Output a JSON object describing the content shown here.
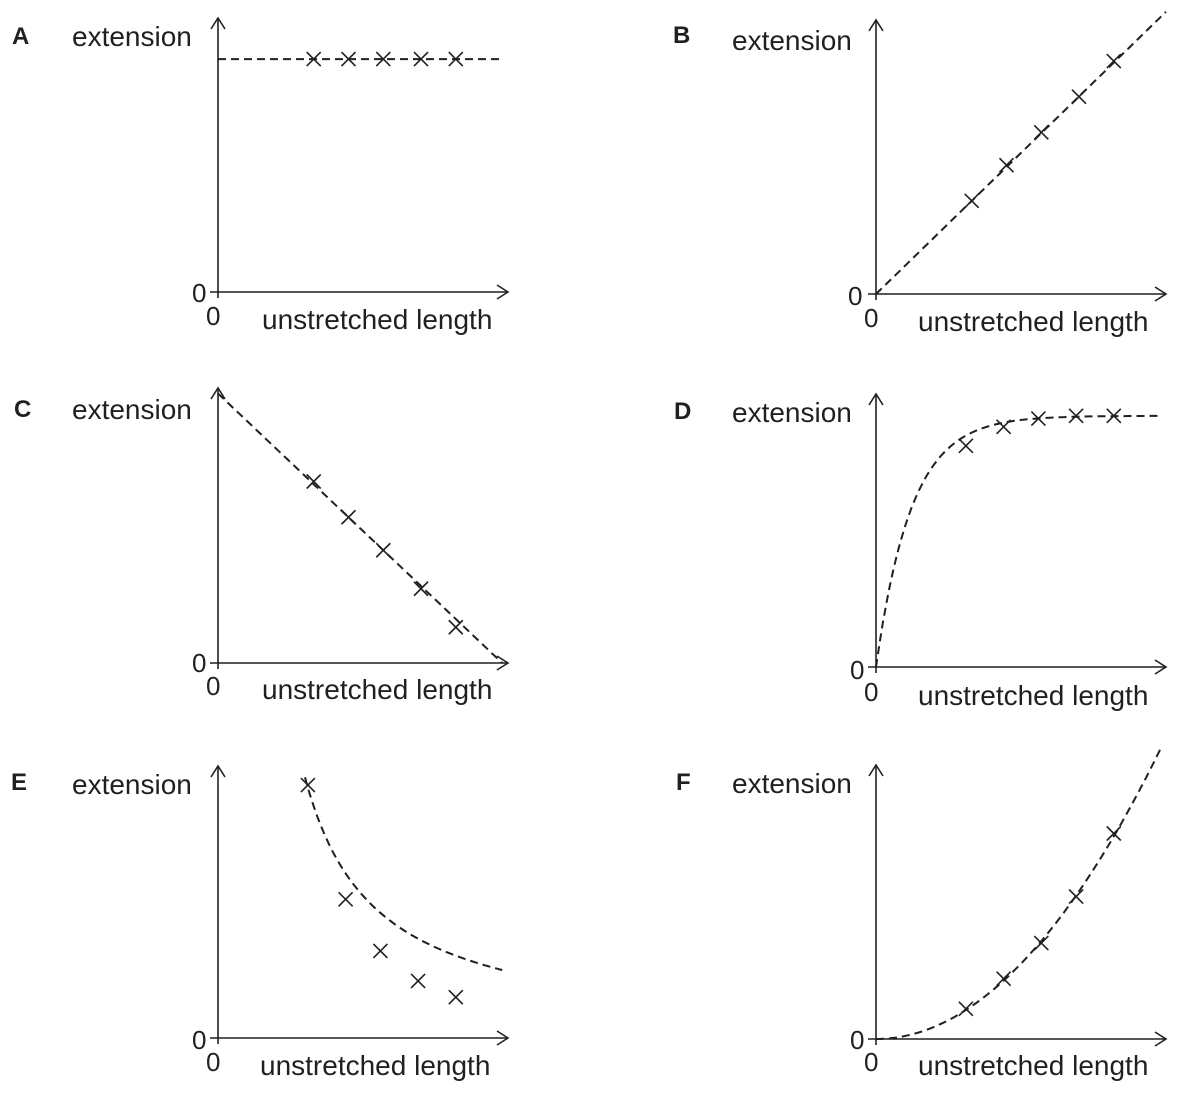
{
  "chart_data": [
    {
      "label": "A",
      "type": "scatter",
      "xlabel": "unstretched length",
      "ylabel": "extension",
      "x_origin_label": "0",
      "y_origin_label": "0",
      "points": [
        [
          0.33,
          0.85
        ],
        [
          0.45,
          0.85
        ],
        [
          0.57,
          0.85
        ],
        [
          0.7,
          0.85
        ],
        [
          0.82,
          0.85
        ]
      ],
      "fit": {
        "kind": "constant",
        "value": 0.85,
        "x_range": [
          0.0,
          0.98
        ]
      }
    },
    {
      "label": "B",
      "type": "scatter",
      "xlabel": "unstretched length",
      "ylabel": "extension",
      "x_origin_label": "0",
      "y_origin_label": "0",
      "points": [
        [
          0.33,
          0.34
        ],
        [
          0.45,
          0.47
        ],
        [
          0.57,
          0.59
        ],
        [
          0.7,
          0.72
        ],
        [
          0.82,
          0.85
        ]
      ],
      "fit": {
        "kind": "linear",
        "slope": 1.03,
        "intercept": 0.0,
        "x_range": [
          0.0,
          1.0
        ]
      }
    },
    {
      "label": "C",
      "type": "scatter",
      "xlabel": "unstretched length",
      "ylabel": "extension",
      "x_origin_label": "0",
      "y_origin_label": "0",
      "points": [
        [
          0.33,
          0.66
        ],
        [
          0.45,
          0.53
        ],
        [
          0.57,
          0.41
        ],
        [
          0.7,
          0.27
        ],
        [
          0.82,
          0.13
        ]
      ],
      "fit": {
        "kind": "linear",
        "slope": -1.0,
        "intercept": 0.98,
        "x_range": [
          0.0,
          0.98
        ]
      }
    },
    {
      "label": "D",
      "type": "scatter",
      "xlabel": "unstretched length",
      "ylabel": "extension",
      "x_origin_label": "0",
      "y_origin_label": "0",
      "points": [
        [
          0.31,
          0.81
        ],
        [
          0.44,
          0.88
        ],
        [
          0.56,
          0.91
        ],
        [
          0.69,
          0.92
        ],
        [
          0.82,
          0.92
        ]
      ],
      "fit": {
        "kind": "saturating",
        "a": 0.92,
        "k": 8.2,
        "x_range": [
          0.0,
          0.98
        ]
      }
    },
    {
      "label": "E",
      "type": "scatter",
      "xlabel": "unstretched length",
      "ylabel": "extension",
      "x_origin_label": "0",
      "y_origin_label": "0",
      "points": [
        [
          0.31,
          0.93
        ],
        [
          0.44,
          0.51
        ],
        [
          0.56,
          0.32
        ],
        [
          0.69,
          0.21
        ],
        [
          0.82,
          0.15
        ]
      ],
      "fit": {
        "kind": "inverse",
        "a": 0.23,
        "b": -0.06,
        "x_range": [
          0.3,
          0.98
        ]
      }
    },
    {
      "label": "F",
      "type": "scatter",
      "xlabel": "unstretched length",
      "ylabel": "extension",
      "x_origin_label": "0",
      "y_origin_label": "0",
      "points": [
        [
          0.31,
          0.11
        ],
        [
          0.44,
          0.22
        ],
        [
          0.57,
          0.35
        ],
        [
          0.69,
          0.52
        ],
        [
          0.82,
          0.75
        ]
      ],
      "fit": {
        "kind": "quadratic",
        "a": 1.1,
        "x_range": [
          0.0,
          0.98
        ]
      }
    }
  ]
}
